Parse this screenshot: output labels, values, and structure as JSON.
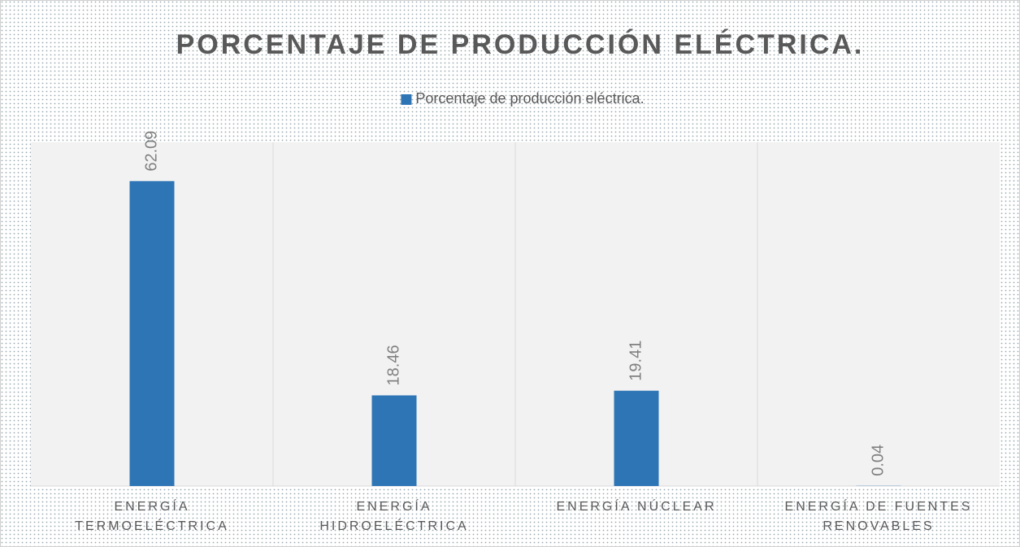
{
  "chart_data": {
    "type": "bar",
    "title": "PORCENTAJE DE PRODUCCIÓN ELÉCTRICA.",
    "categories": [
      "ENERGÍA TERMOELÉCTRICA",
      "ENERGÍA HIDROELÉCTRICA",
      "ENERGÍA NÚCLEAR",
      "ENERGÍA DE FUENTES RENOVABLES"
    ],
    "series": [
      {
        "name": "Porcentaje de producción eléctrica.",
        "color": "#2e75b6",
        "values": [
          62.09,
          18.46,
          19.41,
          0.04
        ]
      }
    ],
    "ylim": [
      0,
      70
    ],
    "legend": "top"
  }
}
